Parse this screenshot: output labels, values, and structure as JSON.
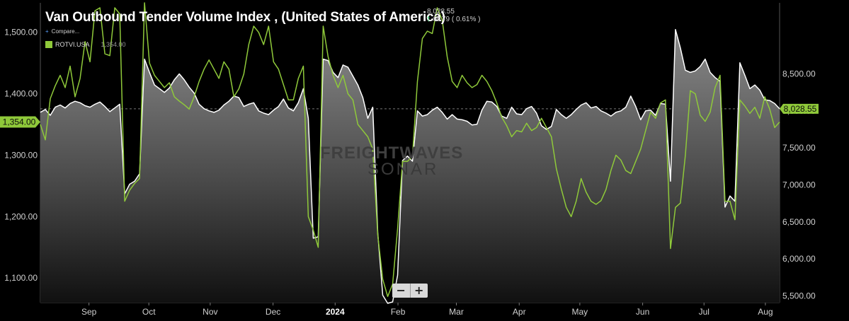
{
  "header": {
    "title": "Van Outbound Tender Volume Index , (United States of America)",
    "last_value": "8,028.55",
    "change": "48.79 ( 0.61% )",
    "compare_label": "Compare...",
    "legend_series": "ROTVI.USA",
    "legend_value": "1,354.00"
  },
  "watermark": {
    "line1": "FREIGHTWAVES",
    "line2": "SONAR"
  },
  "zoom": {
    "minus": "−",
    "plus": "+"
  },
  "colors": {
    "background": "#000000",
    "white_series": "#ffffff",
    "green_series": "#8fc93a",
    "up_arrow": "#43d17a"
  },
  "chart_data": {
    "type": "line",
    "title": "Van Outbound Tender Volume Index , (United States of America)",
    "x_labels": [
      "Sep",
      "Oct",
      "Nov",
      "Dec",
      "2024",
      "Feb",
      "Mar",
      "Apr",
      "May",
      "Jun",
      "Jul",
      "Aug"
    ],
    "left_axis": {
      "ticks": [
        "1,500.00",
        "1,400.00",
        "1,300.00",
        "1,200.00",
        "1,100.00"
      ],
      "ylim": [
        1060,
        1548
      ]
    },
    "right_axis": {
      "ticks": [
        "8,500.00",
        "8,000.00",
        "7,500.00",
        "7,000.00",
        "6,500.00",
        "6,000.00",
        "5,500.00"
      ],
      "ylim": [
        5410,
        9460
      ]
    },
    "series": [
      {
        "name": "Van Outbound Tender Volume Index",
        "axis": "right",
        "style": "area",
        "last_label": "8,028.55",
        "points": [
          [
            0,
            7980
          ],
          [
            1,
            8020
          ],
          [
            2,
            7940
          ],
          [
            3,
            8050
          ],
          [
            4,
            8080
          ],
          [
            5,
            8040
          ],
          [
            6,
            8100
          ],
          [
            7,
            8130
          ],
          [
            8,
            8110
          ],
          [
            9,
            8070
          ],
          [
            10,
            8050
          ],
          [
            11,
            8090
          ],
          [
            12,
            8120
          ],
          [
            13,
            8060
          ],
          [
            14,
            7990
          ],
          [
            15,
            8040
          ],
          [
            16,
            8090
          ],
          [
            17,
            6880
          ],
          [
            18,
            7010
          ],
          [
            19,
            7050
          ],
          [
            20,
            7150
          ],
          [
            21,
            8700
          ],
          [
            22,
            8520
          ],
          [
            23,
            8350
          ],
          [
            24,
            8300
          ],
          [
            25,
            8250
          ],
          [
            26,
            8310
          ],
          [
            27,
            8420
          ],
          [
            28,
            8500
          ],
          [
            29,
            8420
          ],
          [
            30,
            8320
          ],
          [
            31,
            8240
          ],
          [
            32,
            8090
          ],
          [
            33,
            8030
          ],
          [
            34,
            8000
          ],
          [
            35,
            7980
          ],
          [
            36,
            8010
          ],
          [
            37,
            8080
          ],
          [
            38,
            8130
          ],
          [
            39,
            8200
          ],
          [
            40,
            8180
          ],
          [
            41,
            8060
          ],
          [
            42,
            8090
          ],
          [
            43,
            8110
          ],
          [
            44,
            8000
          ],
          [
            45,
            7970
          ],
          [
            46,
            7950
          ],
          [
            47,
            8010
          ],
          [
            48,
            8060
          ],
          [
            49,
            8160
          ],
          [
            50,
            8040
          ],
          [
            51,
            8000
          ],
          [
            52,
            8110
          ],
          [
            53,
            8300
          ],
          [
            54,
            7900
          ],
          [
            55,
            6280
          ],
          [
            56,
            6300
          ],
          [
            57,
            8700
          ],
          [
            58,
            8680
          ],
          [
            59,
            8520
          ],
          [
            60,
            8450
          ],
          [
            61,
            8620
          ],
          [
            62,
            8590
          ],
          [
            63,
            8470
          ],
          [
            64,
            8350
          ],
          [
            65,
            8180
          ],
          [
            66,
            7900
          ],
          [
            67,
            8050
          ],
          [
            68,
            6350
          ],
          [
            69,
            5510
          ],
          [
            70,
            5400
          ],
          [
            71,
            5420
          ],
          [
            72,
            5780
          ],
          [
            73,
            7330
          ],
          [
            74,
            7390
          ],
          [
            75,
            7320
          ],
          [
            76,
            8000
          ],
          [
            77,
            7930
          ],
          [
            78,
            7950
          ],
          [
            79,
            8010
          ],
          [
            80,
            8050
          ],
          [
            81,
            7980
          ],
          [
            82,
            7890
          ],
          [
            83,
            7950
          ],
          [
            84,
            7890
          ],
          [
            85,
            7880
          ],
          [
            86,
            7860
          ],
          [
            87,
            7810
          ],
          [
            88,
            7820
          ],
          [
            89,
            8010
          ],
          [
            90,
            8130
          ],
          [
            91,
            8120
          ],
          [
            92,
            8060
          ],
          [
            93,
            7930
          ],
          [
            94,
            7900
          ],
          [
            95,
            8050
          ],
          [
            96,
            7960
          ],
          [
            97,
            7950
          ],
          [
            98,
            8030
          ],
          [
            99,
            8060
          ],
          [
            100,
            7970
          ],
          [
            101,
            7800
          ],
          [
            102,
            7750
          ],
          [
            103,
            7790
          ],
          [
            104,
            8020
          ],
          [
            105,
            7950
          ],
          [
            106,
            7900
          ],
          [
            107,
            7950
          ],
          [
            108,
            8020
          ],
          [
            109,
            8080
          ],
          [
            110,
            8110
          ],
          [
            111,
            8040
          ],
          [
            112,
            8060
          ],
          [
            113,
            8000
          ],
          [
            114,
            7970
          ],
          [
            115,
            7930
          ],
          [
            116,
            7980
          ],
          [
            117,
            8000
          ],
          [
            118,
            8050
          ],
          [
            119,
            8200
          ],
          [
            120,
            8060
          ],
          [
            121,
            7880
          ],
          [
            122,
            8000
          ],
          [
            123,
            8010
          ],
          [
            124,
            7940
          ],
          [
            125,
            8100
          ],
          [
            126,
            8090
          ],
          [
            127,
            7050
          ],
          [
            128,
            9100
          ],
          [
            129,
            8850
          ],
          [
            130,
            8550
          ],
          [
            131,
            8520
          ],
          [
            132,
            8540
          ],
          [
            133,
            8600
          ],
          [
            134,
            8700
          ],
          [
            135,
            8520
          ],
          [
            136,
            8450
          ],
          [
            137,
            8400
          ],
          [
            138,
            6700
          ],
          [
            139,
            6850
          ],
          [
            140,
            6780
          ],
          [
            141,
            8650
          ],
          [
            142,
            8480
          ],
          [
            143,
            8300
          ],
          [
            144,
            8350
          ],
          [
            145,
            8280
          ],
          [
            146,
            8150
          ],
          [
            147,
            8140
          ],
          [
            148,
            8100
          ],
          [
            149,
            8028.55
          ]
        ]
      },
      {
        "name": "ROTVI.USA",
        "axis": "left",
        "style": "line",
        "last_label": "1,354.00",
        "points": [
          [
            0,
            1350
          ],
          [
            1,
            1325
          ],
          [
            2,
            1392
          ],
          [
            3,
            1413
          ],
          [
            4,
            1430
          ],
          [
            5,
            1410
          ],
          [
            6,
            1445
          ],
          [
            7,
            1395
          ],
          [
            8,
            1425
          ],
          [
            9,
            1485
          ],
          [
            10,
            1452
          ],
          [
            11,
            1535
          ],
          [
            12,
            1540
          ],
          [
            13,
            1465
          ],
          [
            14,
            1462
          ],
          [
            15,
            1540
          ],
          [
            16,
            1530
          ],
          [
            17,
            1225
          ],
          [
            18,
            1243
          ],
          [
            19,
            1254
          ],
          [
            20,
            1262
          ],
          [
            21,
            1548
          ],
          [
            22,
            1450
          ],
          [
            23,
            1430
          ],
          [
            24,
            1420
          ],
          [
            25,
            1410
          ],
          [
            26,
            1418
          ],
          [
            27,
            1395
          ],
          [
            28,
            1388
          ],
          [
            29,
            1382
          ],
          [
            30,
            1375
          ],
          [
            31,
            1395
          ],
          [
            32,
            1420
          ],
          [
            33,
            1440
          ],
          [
            34,
            1455
          ],
          [
            35,
            1440
          ],
          [
            36,
            1425
          ],
          [
            37,
            1452
          ],
          [
            38,
            1440
          ],
          [
            39,
            1395
          ],
          [
            40,
            1408
          ],
          [
            41,
            1432
          ],
          [
            42,
            1480
          ],
          [
            43,
            1510
          ],
          [
            44,
            1500
          ],
          [
            45,
            1480
          ],
          [
            46,
            1510
          ],
          [
            47,
            1452
          ],
          [
            48,
            1440
          ],
          [
            49,
            1415
          ],
          [
            50,
            1390
          ],
          [
            51,
            1390
          ],
          [
            52,
            1425
          ],
          [
            53,
            1445
          ],
          [
            54,
            1200
          ],
          [
            55,
            1178
          ],
          [
            56,
            1150
          ],
          [
            57,
            1510
          ],
          [
            58,
            1460
          ],
          [
            59,
            1430
          ],
          [
            60,
            1410
          ],
          [
            61,
            1430
          ],
          [
            62,
            1400
          ],
          [
            63,
            1390
          ],
          [
            64,
            1350
          ],
          [
            65,
            1340
          ],
          [
            66,
            1330
          ],
          [
            67,
            1310
          ],
          [
            68,
            1170
          ],
          [
            69,
            1098
          ],
          [
            70,
            1070
          ],
          [
            71,
            1090
          ],
          [
            72,
            1180
          ],
          [
            73,
            1290
          ],
          [
            74,
            1290
          ],
          [
            75,
            1298
          ],
          [
            76,
            1420
          ],
          [
            77,
            1490
          ],
          [
            78,
            1502
          ],
          [
            79,
            1498
          ],
          [
            80,
            1540
          ],
          [
            81,
            1520
          ],
          [
            82,
            1460
          ],
          [
            83,
            1420
          ],
          [
            84,
            1410
          ],
          [
            85,
            1430
          ],
          [
            86,
            1418
          ],
          [
            87,
            1410
          ],
          [
            88,
            1415
          ],
          [
            89,
            1430
          ],
          [
            90,
            1420
          ],
          [
            91,
            1405
          ],
          [
            92,
            1385
          ],
          [
            93,
            1362
          ],
          [
            94,
            1348
          ],
          [
            95,
            1330
          ],
          [
            96,
            1340
          ],
          [
            97,
            1338
          ],
          [
            98,
            1352
          ],
          [
            99,
            1340
          ],
          [
            100,
            1345
          ],
          [
            101,
            1360
          ],
          [
            102,
            1345
          ],
          [
            103,
            1330
          ],
          [
            104,
            1278
          ],
          [
            105,
            1245
          ],
          [
            106,
            1215
          ],
          [
            107,
            1200
          ],
          [
            108,
            1225
          ],
          [
            109,
            1262
          ],
          [
            110,
            1240
          ],
          [
            111,
            1225
          ],
          [
            112,
            1220
          ],
          [
            113,
            1226
          ],
          [
            114,
            1244
          ],
          [
            115,
            1275
          ],
          [
            116,
            1300
          ],
          [
            117,
            1292
          ],
          [
            118,
            1275
          ],
          [
            119,
            1270
          ],
          [
            120,
            1290
          ],
          [
            121,
            1310
          ],
          [
            122,
            1340
          ],
          [
            123,
            1370
          ],
          [
            124,
            1360
          ],
          [
            125,
            1385
          ],
          [
            126,
            1390
          ],
          [
            127,
            1148
          ],
          [
            128,
            1215
          ],
          [
            129,
            1222
          ],
          [
            130,
            1300
          ],
          [
            131,
            1405
          ],
          [
            132,
            1400
          ],
          [
            133,
            1365
          ],
          [
            134,
            1355
          ],
          [
            135,
            1370
          ],
          [
            136,
            1410
          ],
          [
            137,
            1430
          ],
          [
            138,
            1225
          ],
          [
            139,
            1225
          ],
          [
            140,
            1195
          ],
          [
            141,
            1390
          ],
          [
            142,
            1380
          ],
          [
            143,
            1368
          ],
          [
            144,
            1378
          ],
          [
            145,
            1360
          ],
          [
            146,
            1395
          ],
          [
            147,
            1375
          ],
          [
            148,
            1345
          ],
          [
            149,
            1354
          ]
        ]
      }
    ]
  }
}
